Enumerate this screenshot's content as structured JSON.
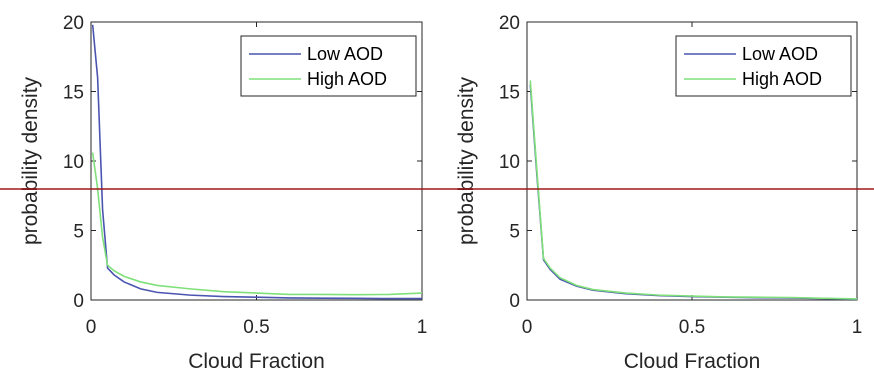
{
  "chart_data": [
    {
      "type": "line",
      "xlabel": "Cloud Fraction",
      "ylabel": "probability density",
      "xlim": [
        0,
        1
      ],
      "ylim": [
        0,
        20
      ],
      "xticks": [
        "0",
        "0.5",
        "1"
      ],
      "yticks": [
        "0",
        "5",
        "10",
        "15",
        "20"
      ],
      "legend_position": "top-right",
      "series": [
        {
          "name": "Low AOD",
          "color": "#4a55b0",
          "x": [
            0.005,
            0.02,
            0.035,
            0.05,
            0.07,
            0.1,
            0.15,
            0.2,
            0.3,
            0.4,
            0.5,
            0.6,
            0.7,
            0.8,
            0.9,
            1.0
          ],
          "y": [
            19.8,
            16.0,
            6.5,
            2.3,
            1.8,
            1.3,
            0.8,
            0.55,
            0.35,
            0.25,
            0.2,
            0.15,
            0.13,
            0.12,
            0.1,
            0.1
          ]
        },
        {
          "name": "High AOD",
          "color": "#7fe07a",
          "x": [
            0.005,
            0.02,
            0.035,
            0.05,
            0.07,
            0.1,
            0.15,
            0.2,
            0.3,
            0.4,
            0.5,
            0.6,
            0.7,
            0.8,
            0.9,
            1.0
          ],
          "y": [
            10.6,
            8.0,
            4.5,
            2.5,
            2.1,
            1.7,
            1.3,
            1.05,
            0.8,
            0.6,
            0.5,
            0.4,
            0.4,
            0.38,
            0.4,
            0.5
          ]
        }
      ]
    },
    {
      "type": "line",
      "xlabel": "Cloud Fraction",
      "ylabel": "probability density",
      "xlim": [
        0,
        1
      ],
      "ylim": [
        0,
        20
      ],
      "xticks": [
        "0",
        "0.5",
        "1"
      ],
      "yticks": [
        "0",
        "5",
        "10",
        "15",
        "20"
      ],
      "legend_position": "top-right",
      "series": [
        {
          "name": "Low AOD",
          "color": "#4a55b0",
          "x": [
            0.01,
            0.03,
            0.05,
            0.07,
            0.1,
            0.15,
            0.2,
            0.3,
            0.4,
            0.5,
            0.6,
            0.7,
            0.8,
            0.9,
            1.0
          ],
          "y": [
            15.5,
            9.0,
            2.9,
            2.2,
            1.5,
            1.0,
            0.7,
            0.45,
            0.32,
            0.25,
            0.2,
            0.17,
            0.15,
            0.1,
            0.05
          ]
        },
        {
          "name": "High AOD",
          "color": "#7fe07a",
          "x": [
            0.01,
            0.03,
            0.05,
            0.07,
            0.1,
            0.15,
            0.2,
            0.3,
            0.4,
            0.5,
            0.6,
            0.7,
            0.8,
            0.9,
            1.0
          ],
          "y": [
            15.8,
            9.3,
            3.0,
            2.3,
            1.6,
            1.05,
            0.75,
            0.5,
            0.35,
            0.28,
            0.22,
            0.2,
            0.18,
            0.12,
            0.08
          ]
        }
      ]
    }
  ],
  "overlay_line": {
    "color": "#a01818",
    "y_fraction": 0.4935
  }
}
